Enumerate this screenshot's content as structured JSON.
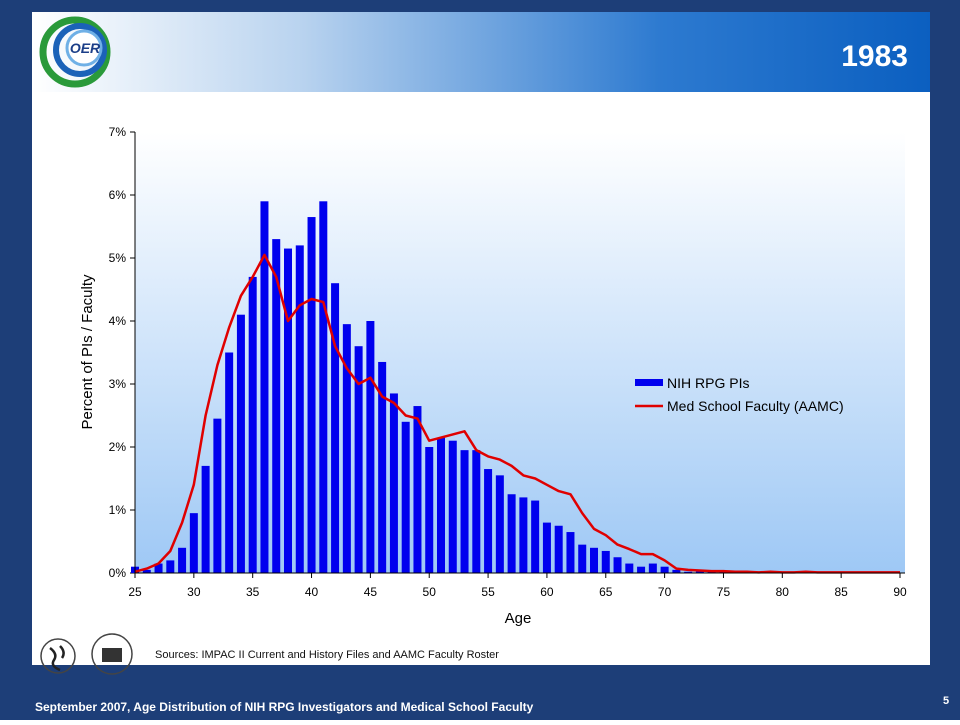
{
  "logo_text": "OER",
  "sources": "Sources:  IMPAC II Current  and History Files and AAMC Faculty Roster",
  "footer": "September 2007, Age Distribution of NIH RPG Investigators and Medical School Faculty",
  "page_number": "5",
  "chart_data": {
    "type": "bar",
    "title": "1983",
    "x_label": "Age",
    "y_label": "Percent of PIs / Faculty",
    "x": [
      25,
      26,
      27,
      28,
      29,
      30,
      31,
      32,
      33,
      34,
      35,
      36,
      37,
      38,
      39,
      40,
      41,
      42,
      43,
      44,
      45,
      46,
      47,
      48,
      49,
      50,
      51,
      52,
      53,
      54,
      55,
      56,
      57,
      58,
      59,
      60,
      61,
      62,
      63,
      64,
      65,
      66,
      67,
      68,
      69,
      70,
      71,
      72,
      73,
      74,
      75,
      76,
      77,
      78,
      79,
      80,
      81,
      82,
      83,
      84,
      85,
      86,
      87,
      88,
      89,
      90
    ],
    "series": [
      {
        "name": "NIH RPG PIs",
        "type": "bar",
        "color": "#0000ee",
        "values": [
          0.1,
          0.05,
          0.15,
          0.2,
          0.4,
          0.95,
          1.7,
          2.45,
          3.5,
          4.1,
          4.7,
          5.9,
          5.3,
          5.15,
          5.2,
          5.65,
          5.9,
          4.6,
          3.95,
          3.6,
          4.0,
          3.35,
          2.85,
          2.4,
          2.65,
          2.0,
          2.15,
          2.1,
          1.95,
          1.95,
          1.65,
          1.55,
          1.25,
          1.2,
          1.15,
          0.8,
          0.75,
          0.65,
          0.45,
          0.4,
          0.35,
          0.25,
          0.15,
          0.1,
          0.15,
          0.1,
          0.05,
          0.02,
          0.05,
          0.02,
          0.02,
          0.01,
          0,
          0,
          0,
          0,
          0,
          0,
          0,
          0,
          0,
          0,
          0,
          0,
          0,
          0
        ]
      },
      {
        "name": "Med School Faculty (AAMC)",
        "type": "line",
        "color": "#e00000",
        "values": [
          0.02,
          0.07,
          0.15,
          0.35,
          0.8,
          1.4,
          2.5,
          3.3,
          3.9,
          4.4,
          4.7,
          5.05,
          4.7,
          4.0,
          4.25,
          4.35,
          4.3,
          3.6,
          3.25,
          3.0,
          3.1,
          2.8,
          2.7,
          2.5,
          2.45,
          2.1,
          2.15,
          2.2,
          2.25,
          1.95,
          1.85,
          1.8,
          1.7,
          1.55,
          1.5,
          1.4,
          1.3,
          1.25,
          0.95,
          0.7,
          0.6,
          0.45,
          0.38,
          0.3,
          0.3,
          0.2,
          0.07,
          0.05,
          0.04,
          0.03,
          0.03,
          0.02,
          0.02,
          0.01,
          0.02,
          0.01,
          0.01,
          0.02,
          0.01,
          0.01,
          0.01,
          0.01,
          0.01,
          0.01,
          0.01,
          0.01
        ]
      }
    ],
    "xlim": [
      25,
      90
    ],
    "xticks": [
      25,
      30,
      35,
      40,
      45,
      50,
      55,
      60,
      65,
      70,
      75,
      80,
      85,
      90
    ],
    "ylim": [
      0,
      7
    ],
    "yticks": [
      {
        "value": 0,
        "label": "0%"
      },
      {
        "value": 1,
        "label": "1%"
      },
      {
        "value": 2,
        "label": "2%"
      },
      {
        "value": 3,
        "label": "3%"
      },
      {
        "value": 4,
        "label": "4%"
      },
      {
        "value": 5,
        "label": "5%"
      },
      {
        "value": 6,
        "label": "6%"
      },
      {
        "value": 7,
        "label": "7%"
      }
    ],
    "legend": "right"
  }
}
